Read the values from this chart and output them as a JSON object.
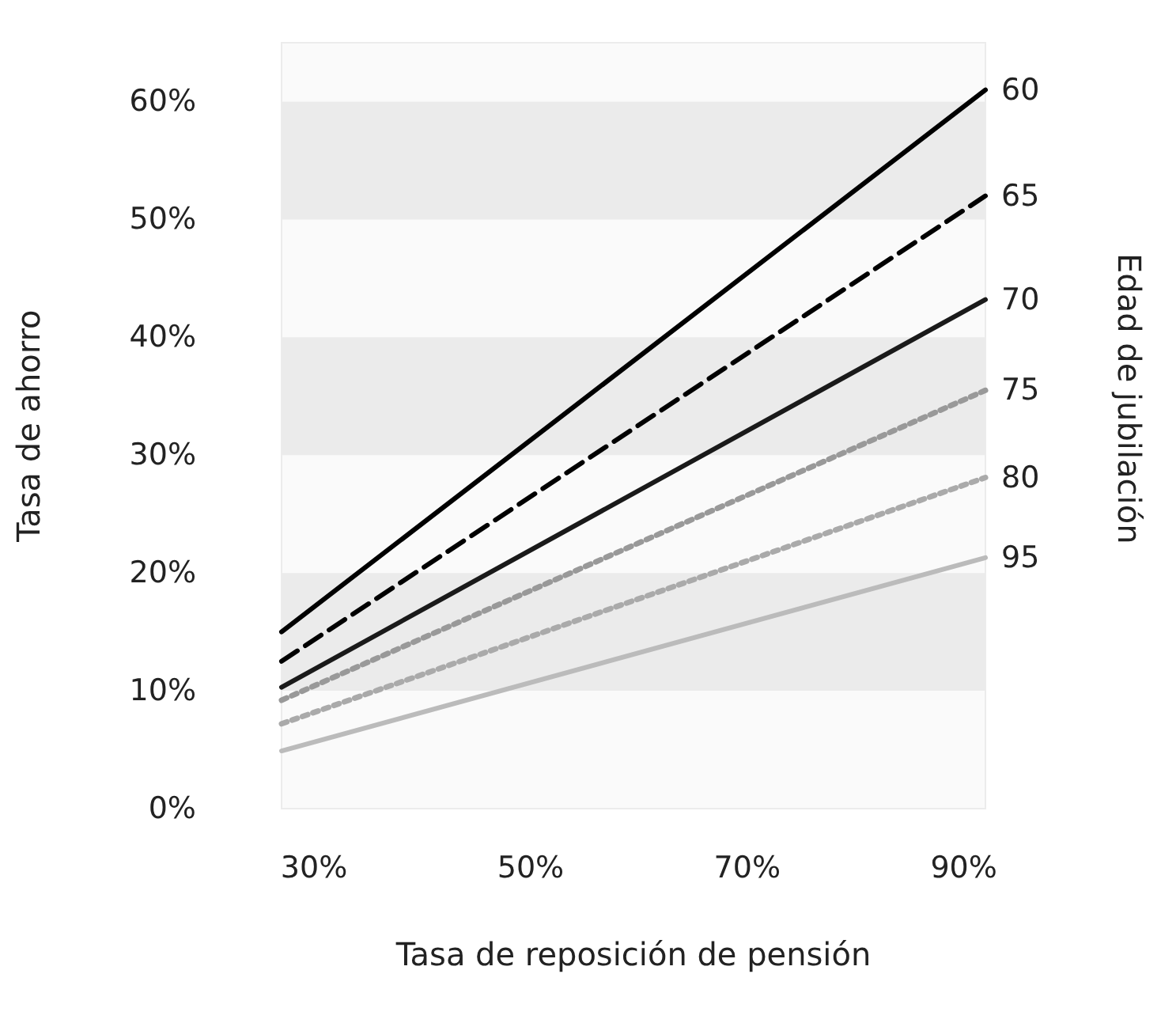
{
  "chart_data": {
    "type": "line",
    "xlabel": "Tasa de reposición de pensión",
    "ylabel": "Tasa de ahorro",
    "y2label": "Edad de jubilación",
    "x": [
      27,
      92
    ],
    "xlim": [
      27,
      92
    ],
    "xticks": [
      {
        "value": 30,
        "label": "30%"
      },
      {
        "value": 50,
        "label": "50%"
      },
      {
        "value": 70,
        "label": "70%"
      },
      {
        "value": 90,
        "label": "90%"
      }
    ],
    "ylim": [
      0,
      65
    ],
    "yticks": [
      {
        "value": 0,
        "label": "0%"
      },
      {
        "value": 10,
        "label": "10%"
      },
      {
        "value": 20,
        "label": "20%"
      },
      {
        "value": 30,
        "label": "30%"
      },
      {
        "value": 40,
        "label": "40%"
      },
      {
        "value": 50,
        "label": "50%"
      },
      {
        "value": 60,
        "label": "60%"
      }
    ],
    "grid": false,
    "legend": false,
    "marker": "none",
    "bands": [
      {
        "axis": "y",
        "from": 10,
        "to": 20,
        "color": "#ebebeb"
      },
      {
        "axis": "y",
        "from": 30,
        "to": 40,
        "color": "#ebebeb"
      },
      {
        "axis": "y",
        "from": 50,
        "to": 60,
        "color": "#ebebeb"
      }
    ],
    "series": [
      {
        "name": "60",
        "color": "#000000",
        "line_style": "solid",
        "values": [
          15.0,
          61
        ]
      },
      {
        "name": "65",
        "color": "#000000",
        "line_style": "dashed",
        "values": [
          12.5,
          52
        ]
      },
      {
        "name": "70",
        "color": "#1a1a1a",
        "line_style": "solid",
        "values": [
          10.3,
          43.2
        ]
      },
      {
        "name": "75",
        "color": "#999999",
        "line_style": "dotted",
        "values": [
          9.2,
          35.5
        ]
      },
      {
        "name": "80",
        "color": "#aaaaaa",
        "line_style": "dotted",
        "values": [
          7.2,
          28.1
        ]
      },
      {
        "name": "95",
        "color": "#bbbbbb",
        "line_style": "solid",
        "values": [
          4.9,
          21.3
        ]
      }
    ]
  }
}
